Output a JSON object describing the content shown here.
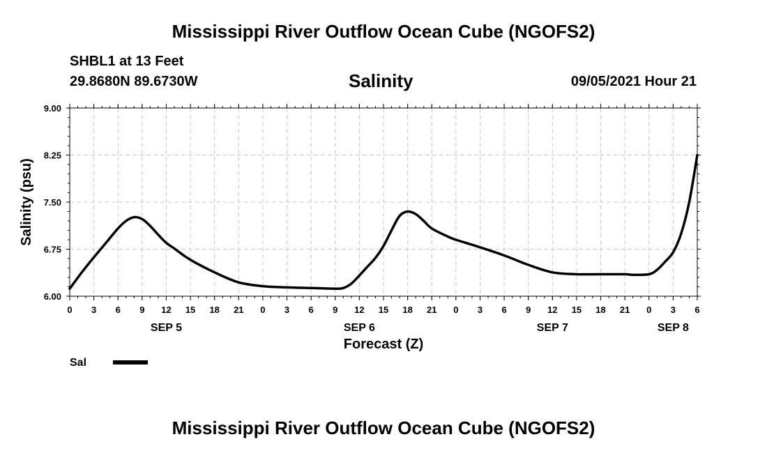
{
  "header": {
    "title": "Mississippi River Outflow Ocean Cube (NGOFS2)",
    "station": "SHBL1 at 13 Feet",
    "coords": "29.8680N  89.6730W",
    "variable": "Salinity",
    "datetime": "09/05/2021 Hour 21"
  },
  "footer": {
    "title": "Mississippi River Outflow Ocean Cube (NGOFS2)"
  },
  "colors": {
    "line": "#000000",
    "grid": "#c8c8c8"
  },
  "chart_data": {
    "type": "line",
    "title": "Salinity",
    "xlabel": "Forecast (Z)",
    "ylabel": "Salinity (psu)",
    "ylim": [
      6.0,
      9.0
    ],
    "yticks": [
      "6.00",
      "6.75",
      "7.50",
      "8.25",
      "9.00"
    ],
    "xlim_hours": [
      0,
      78
    ],
    "xtick_labels": [
      "0",
      "3",
      "6",
      "9",
      "12",
      "15",
      "18",
      "21",
      "0",
      "3",
      "6",
      "9",
      "12",
      "15",
      "18",
      "21",
      "0",
      "3",
      "6",
      "9",
      "12",
      "15",
      "18",
      "21",
      "0",
      "3",
      "6"
    ],
    "day_labels": [
      {
        "label": "SEP 5",
        "hour": 12
      },
      {
        "label": "SEP 6",
        "hour": 36
      },
      {
        "label": "SEP 7",
        "hour": 60
      },
      {
        "label": "SEP 8",
        "hour": 75
      }
    ],
    "grid": true,
    "legend": {
      "position": "bottom-left",
      "entries": [
        "Sal"
      ]
    },
    "series": [
      {
        "name": "Sal",
        "x": [
          0,
          1.5,
          3,
          4.5,
          6,
          7,
          8,
          9,
          10,
          11,
          12,
          13,
          15,
          18,
          21,
          24,
          27,
          30,
          33,
          34,
          35,
          36,
          37,
          38,
          39,
          40,
          41,
          42,
          43,
          44,
          45,
          47,
          48,
          51,
          54,
          57,
          60,
          63,
          66,
          69,
          70,
          72,
          73,
          74,
          75,
          76,
          77,
          78
        ],
        "y": [
          6.12,
          6.38,
          6.62,
          6.85,
          7.08,
          7.2,
          7.26,
          7.23,
          7.12,
          6.98,
          6.85,
          6.76,
          6.58,
          6.38,
          6.22,
          6.16,
          6.14,
          6.13,
          6.12,
          6.13,
          6.2,
          6.33,
          6.47,
          6.61,
          6.8,
          7.05,
          7.28,
          7.35,
          7.31,
          7.2,
          7.08,
          6.95,
          6.9,
          6.78,
          6.65,
          6.5,
          6.38,
          6.35,
          6.35,
          6.35,
          6.34,
          6.35,
          6.42,
          6.55,
          6.7,
          7.0,
          7.5,
          8.25
        ]
      }
    ]
  }
}
